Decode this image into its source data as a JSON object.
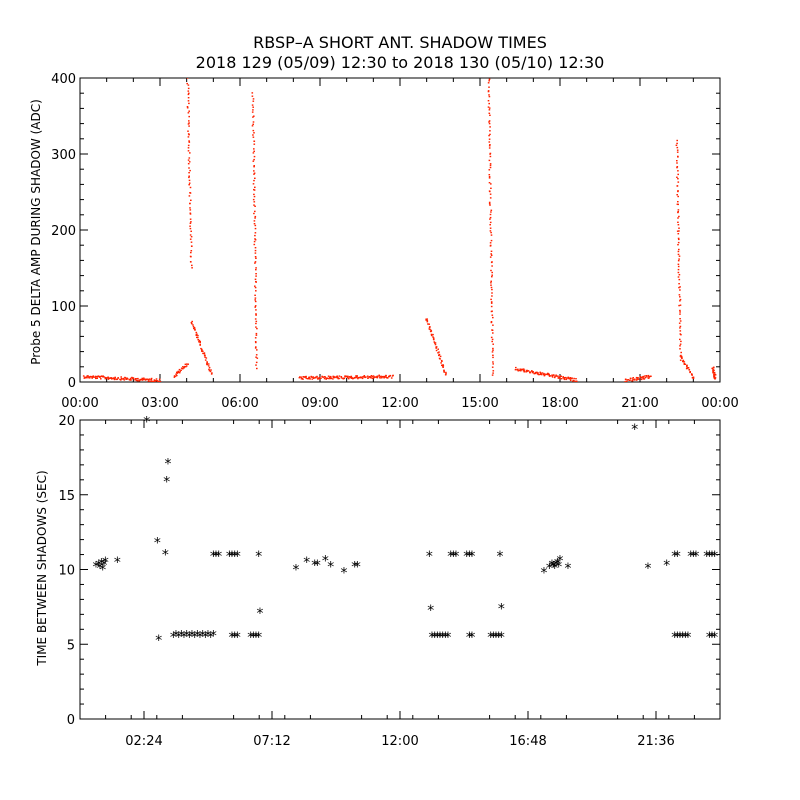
{
  "title_line1": "RBSP–A SHORT ANT. SHADOW TIMES",
  "title_line2": "2018 129 (05/09) 12:30 to 2018 130 (05/10) 12:30",
  "colors": {
    "series_top": "#ff2200",
    "series_bottom": "#000000",
    "axes": "#000000"
  },
  "chart_data": [
    {
      "type": "scatter",
      "ylabel": "Probe 5 DELTA AMP DURING SHADOW (ADC)",
      "xlim_hours": [
        0,
        24
      ],
      "ylim": [
        0,
        400
      ],
      "x_ticks": [
        "00:00",
        "03:00",
        "06:00",
        "09:00",
        "12:00",
        "15:00",
        "18:00",
        "21:00",
        "00:00"
      ],
      "y_ticks": [
        "0",
        "100",
        "200",
        "300",
        "400"
      ],
      "segments": [
        {
          "x0": 0.1,
          "x1": 3.0,
          "y0": 8,
          "y1": 3
        },
        {
          "x0": 3.5,
          "x1": 4.0,
          "y0": 8,
          "y1": 25
        },
        {
          "x0": 4.0,
          "x1": 4.15,
          "y0": 420,
          "y1": 150
        },
        {
          "x0": 4.15,
          "x1": 4.9,
          "y0": 80,
          "y1": 12
        },
        {
          "x0": 6.45,
          "x1": 6.6,
          "y0": 380,
          "y1": 20
        },
        {
          "x0": 8.2,
          "x1": 11.7,
          "y0": 6,
          "y1": 8
        },
        {
          "x0": 12.95,
          "x1": 13.7,
          "y0": 85,
          "y1": 10
        },
        {
          "x0": 15.3,
          "x1": 15.45,
          "y0": 400,
          "y1": 10
        },
        {
          "x0": 16.3,
          "x1": 18.6,
          "y0": 18,
          "y1": 3
        },
        {
          "x0": 20.4,
          "x1": 21.4,
          "y0": 3,
          "y1": 8
        },
        {
          "x0": 22.35,
          "x1": 22.5,
          "y0": 320,
          "y1": 30
        },
        {
          "x0": 22.5,
          "x1": 23.0,
          "y0": 35,
          "y1": 5
        },
        {
          "x0": 23.7,
          "x1": 23.8,
          "y0": 20,
          "y1": 5
        }
      ]
    },
    {
      "type": "scatter",
      "ylabel": "TIME BETWEEN SHADOWS (SEC)",
      "xlim_hours": [
        0,
        24
      ],
      "ylim": [
        0,
        20
      ],
      "x_ticks": [
        "02:24",
        "07:12",
        "12:00",
        "16:48",
        "21:36"
      ],
      "x_tick_hours": [
        2.4,
        7.2,
        12.0,
        16.8,
        21.6
      ],
      "y_ticks": [
        "0",
        "5",
        "10",
        "15",
        "20"
      ],
      "points": [
        [
          0.6,
          10.2
        ],
        [
          0.7,
          10.3
        ],
        [
          0.75,
          10.1
        ],
        [
          0.8,
          10.4
        ],
        [
          0.85,
          10.0
        ],
        [
          0.9,
          10.3
        ],
        [
          0.95,
          10.5
        ],
        [
          1.4,
          10.5
        ],
        [
          2.5,
          19.9
        ],
        [
          2.9,
          11.8
        ],
        [
          2.95,
          5.3
        ],
        [
          3.2,
          11.0
        ],
        [
          3.25,
          15.9
        ],
        [
          3.3,
          17.1
        ],
        [
          3.5,
          5.5
        ],
        [
          3.6,
          5.6
        ],
        [
          3.7,
          5.5
        ],
        [
          3.8,
          5.6
        ],
        [
          3.9,
          5.5
        ],
        [
          4.0,
          5.6
        ],
        [
          4.1,
          5.5
        ],
        [
          4.2,
          5.6
        ],
        [
          4.3,
          5.5
        ],
        [
          4.4,
          5.6
        ],
        [
          4.5,
          5.5
        ],
        [
          4.6,
          5.6
        ],
        [
          4.7,
          5.5
        ],
        [
          4.8,
          5.6
        ],
        [
          4.9,
          5.5
        ],
        [
          5.0,
          5.6
        ],
        [
          5.0,
          10.9
        ],
        [
          5.1,
          10.9
        ],
        [
          5.2,
          10.9
        ],
        [
          5.6,
          10.9
        ],
        [
          5.7,
          10.9
        ],
        [
          5.8,
          10.9
        ],
        [
          5.9,
          10.9
        ],
        [
          5.7,
          5.5
        ],
        [
          5.8,
          5.5
        ],
        [
          5.9,
          5.5
        ],
        [
          6.4,
          5.5
        ],
        [
          6.5,
          5.5
        ],
        [
          6.6,
          5.5
        ],
        [
          6.7,
          5.5
        ],
        [
          6.7,
          10.9
        ],
        [
          6.75,
          7.1
        ],
        [
          8.1,
          10.0
        ],
        [
          8.5,
          10.5
        ],
        [
          8.8,
          10.3
        ],
        [
          8.9,
          10.3
        ],
        [
          9.2,
          10.6
        ],
        [
          9.4,
          10.2
        ],
        [
          9.9,
          9.8
        ],
        [
          10.3,
          10.2
        ],
        [
          10.4,
          10.2
        ],
        [
          13.1,
          10.9
        ],
        [
          13.15,
          7.3
        ],
        [
          13.2,
          5.5
        ],
        [
          13.3,
          5.5
        ],
        [
          13.4,
          5.5
        ],
        [
          13.5,
          5.5
        ],
        [
          13.6,
          5.5
        ],
        [
          13.7,
          5.5
        ],
        [
          13.8,
          5.5
        ],
        [
          13.9,
          10.9
        ],
        [
          14.0,
          10.9
        ],
        [
          14.1,
          10.9
        ],
        [
          14.5,
          10.9
        ],
        [
          14.6,
          10.9
        ],
        [
          14.7,
          10.9
        ],
        [
          14.6,
          5.5
        ],
        [
          14.7,
          5.5
        ],
        [
          15.4,
          5.5
        ],
        [
          15.5,
          5.5
        ],
        [
          15.6,
          5.5
        ],
        [
          15.7,
          5.5
        ],
        [
          15.8,
          5.5
        ],
        [
          15.75,
          10.9
        ],
        [
          15.8,
          7.4
        ],
        [
          17.4,
          9.8
        ],
        [
          17.6,
          10.1
        ],
        [
          17.7,
          10.3
        ],
        [
          17.75,
          10.2
        ],
        [
          17.8,
          10.1
        ],
        [
          17.85,
          10.3
        ],
        [
          17.9,
          10.4
        ],
        [
          17.95,
          10.2
        ],
        [
          18.0,
          10.6
        ],
        [
          18.3,
          10.1
        ],
        [
          20.8,
          19.4
        ],
        [
          21.3,
          10.1
        ],
        [
          22.0,
          10.3
        ],
        [
          22.3,
          10.9
        ],
        [
          22.4,
          10.9
        ],
        [
          22.3,
          5.5
        ],
        [
          22.4,
          5.5
        ],
        [
          22.5,
          5.5
        ],
        [
          22.6,
          5.5
        ],
        [
          22.7,
          5.5
        ],
        [
          22.8,
          5.5
        ],
        [
          22.9,
          10.9
        ],
        [
          23.0,
          10.9
        ],
        [
          23.1,
          10.9
        ],
        [
          23.6,
          5.5
        ],
        [
          23.7,
          5.5
        ],
        [
          23.8,
          5.5
        ],
        [
          23.5,
          10.9
        ],
        [
          23.6,
          10.9
        ],
        [
          23.7,
          10.9
        ],
        [
          23.8,
          10.9
        ]
      ]
    }
  ]
}
